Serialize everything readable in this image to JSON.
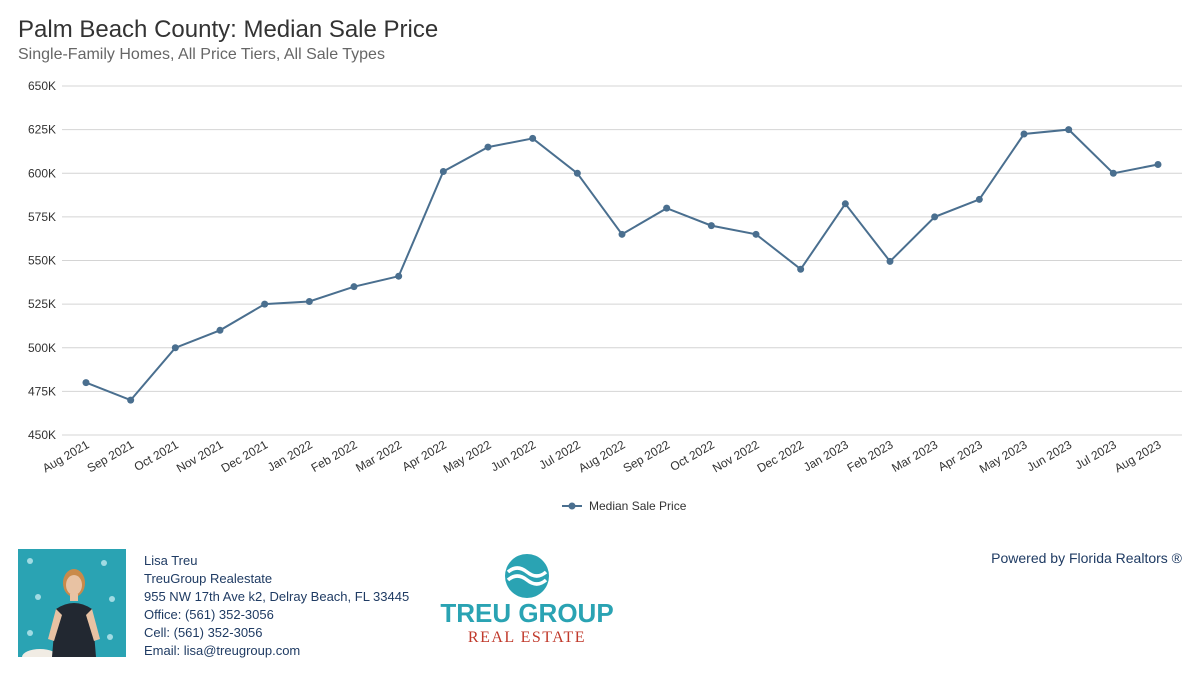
{
  "chart_data": {
    "type": "line",
    "title": "Palm Beach County: Median Sale Price",
    "subtitle": "Single-Family Homes, All Price Tiers, All Sale Types",
    "categories": [
      "Aug 2021",
      "Sep 2021",
      "Oct 2021",
      "Nov 2021",
      "Dec 2021",
      "Jan 2022",
      "Feb 2022",
      "Mar 2022",
      "Apr 2022",
      "May 2022",
      "Jun 2022",
      "Jul 2022",
      "Aug 2022",
      "Sep 2022",
      "Oct 2022",
      "Nov 2022",
      "Dec 2022",
      "Jan 2023",
      "Feb 2023",
      "Mar 2023",
      "Apr 2023",
      "May 2023",
      "Jun 2023",
      "Jul 2023",
      "Aug 2023"
    ],
    "series": [
      {
        "name": "Median Sale Price",
        "color": "#4a6f8f",
        "values": [
          480000,
          470000,
          500000,
          510000,
          525000,
          526500,
          535000,
          541000,
          601000,
          615000,
          620000,
          600000,
          565000,
          580000,
          570000,
          565000,
          545000,
          582500,
          549500,
          575000,
          585000,
          622500,
          625000,
          600000,
          605000
        ]
      }
    ],
    "ylim": [
      450000,
      650000
    ],
    "yticks": [
      450000,
      475000,
      500000,
      525000,
      550000,
      575000,
      600000,
      625000,
      650000
    ],
    "ytick_labels": [
      "450K",
      "475K",
      "500K",
      "525K",
      "550K",
      "575K",
      "600K",
      "625K",
      "650K"
    ],
    "grid": true,
    "legend_position": "bottom-center"
  },
  "agent": {
    "name": "Lisa Treu",
    "company": "TreuGroup Realestate",
    "address": "955 NW 17th Ave k2, Delray Beach, FL 33445",
    "office": "Office: (561) 352-3056",
    "cell": "Cell: (561) 352-3056",
    "email": "Email: lisa@treugroup.com"
  },
  "logo": {
    "line1": "TREU GROUP",
    "line2": "REAL ESTATE",
    "primary_color": "#2aa3b3",
    "secondary_color": "#c0392b"
  },
  "footer": {
    "powered_by": "Powered by Florida Realtors ®"
  }
}
